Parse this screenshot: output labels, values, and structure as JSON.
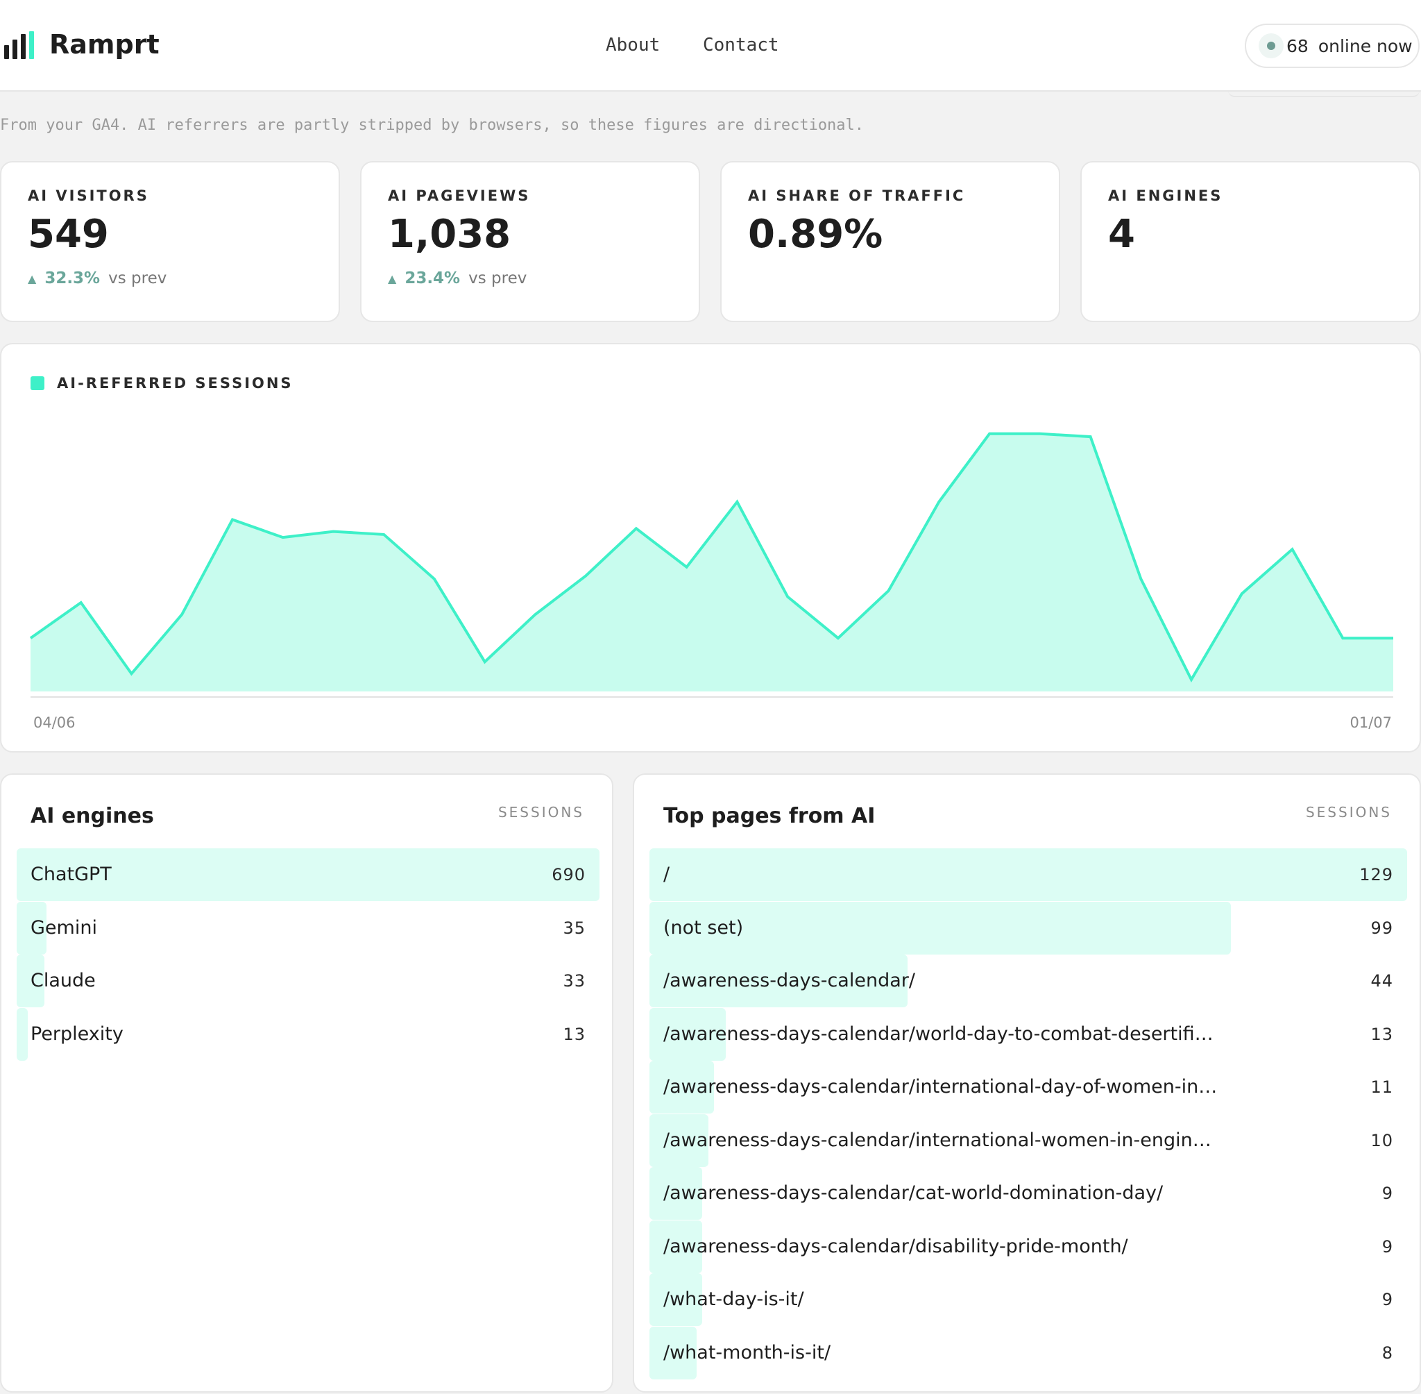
{
  "header": {
    "brand": "Ramprt",
    "nav": {
      "about": "About",
      "contact": "Contact"
    },
    "online": {
      "count": "68",
      "label": "online now",
      "dot_color": "#6d9b92"
    }
  },
  "subtitle": "From your GA4. AI referrers are partly stripped by browsers, so these figures are directional.",
  "kpis": {
    "visitors": {
      "label": "AI VISITORS",
      "value": "549",
      "delta": "32.3%",
      "vs": "vs prev"
    },
    "pageviews": {
      "label": "AI PAGEVIEWS",
      "value": "1,038",
      "delta": "23.4%",
      "vs": "vs prev"
    },
    "share": {
      "label": "AI SHARE OF TRAFFIC",
      "value": "0.89%"
    },
    "engines": {
      "label": "AI ENGINES",
      "value": "4"
    }
  },
  "colors": {
    "accent": "#3ef0c8",
    "accent_fill": "#c8fcee",
    "bar_fill": "#dcfdf4",
    "delta": "#6aa69a"
  },
  "chart_data": {
    "type": "area",
    "title": "",
    "series": [
      {
        "name": "AI-REFERRED SESSIONS",
        "values": [
          9,
          15,
          3,
          13,
          29,
          26,
          27,
          26.5,
          19,
          5,
          13,
          19.5,
          27.5,
          21,
          32,
          16,
          9,
          17,
          32,
          43.5,
          43.5,
          43,
          19,
          2,
          16.5,
          24,
          9,
          9
        ]
      }
    ],
    "x_labels": {
      "start": "04/06",
      "end": "01/07"
    },
    "ylim": [
      0,
      45
    ],
    "grid": false
  },
  "engines": {
    "title": "AI engines",
    "column": "SESSIONS",
    "rows": [
      {
        "name": "ChatGPT",
        "value": "690",
        "n": 690
      },
      {
        "name": "Gemini",
        "value": "35",
        "n": 35
      },
      {
        "name": "Claude",
        "value": "33",
        "n": 33
      },
      {
        "name": "Perplexity",
        "value": "13",
        "n": 13
      }
    ]
  },
  "pages": {
    "title": "Top pages from AI",
    "column": "SESSIONS",
    "rows": [
      {
        "name": "/",
        "value": "129",
        "n": 129
      },
      {
        "name": "(not set)",
        "value": "99",
        "n": 99
      },
      {
        "name": "/awareness-days-calendar/",
        "value": "44",
        "n": 44
      },
      {
        "name": "/awareness-days-calendar/world-day-to-combat-desertifi…",
        "value": "13",
        "n": 13
      },
      {
        "name": "/awareness-days-calendar/international-day-of-women-in…",
        "value": "11",
        "n": 11
      },
      {
        "name": "/awareness-days-calendar/international-women-in-engin…",
        "value": "10",
        "n": 10
      },
      {
        "name": "/awareness-days-calendar/cat-world-domination-day/",
        "value": "9",
        "n": 9
      },
      {
        "name": "/awareness-days-calendar/disability-pride-month/",
        "value": "9",
        "n": 9
      },
      {
        "name": "/what-day-is-it/",
        "value": "9",
        "n": 9
      },
      {
        "name": "/what-month-is-it/",
        "value": "8",
        "n": 8
      }
    ]
  }
}
